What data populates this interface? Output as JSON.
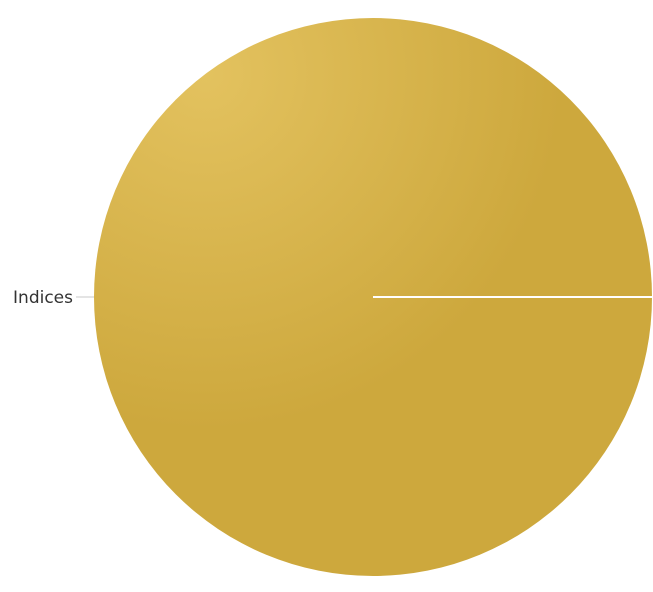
{
  "chart_data": {
    "type": "pie",
    "title": "",
    "slices": [
      {
        "label": "Indices",
        "value": 100
      }
    ],
    "colors": {
      "slice_light": "#e3c25f",
      "slice_dark": "#cda83d",
      "separator": "#ffffff",
      "leader_line": "#c8c8c8",
      "label_text": "#333333"
    },
    "legend": "none"
  }
}
